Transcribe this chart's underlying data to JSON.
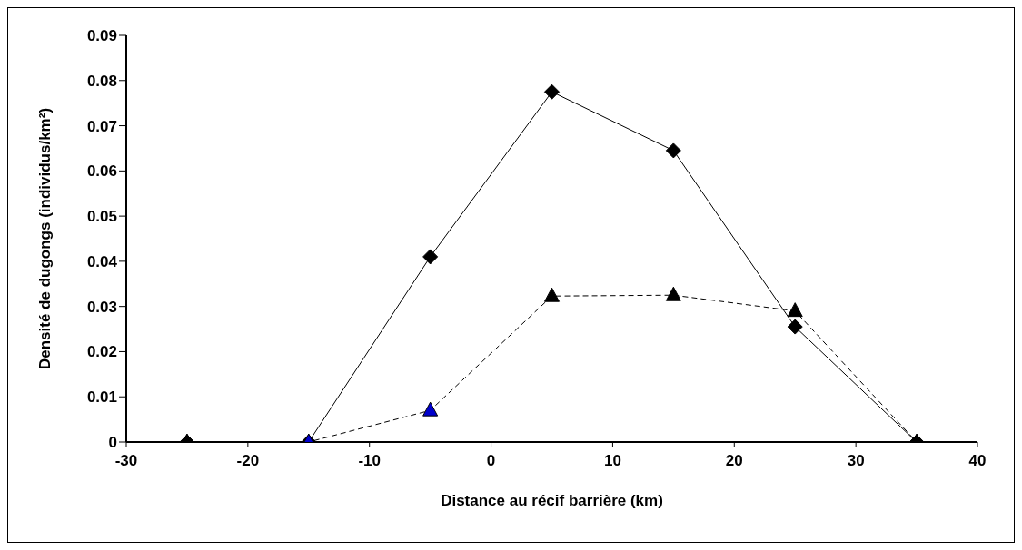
{
  "chart_data": {
    "type": "line",
    "xlabel": "Distance au récif barrière (km)",
    "ylabel": "Densité de dugongs (individus/km²)",
    "x": [
      -25,
      -15,
      -5,
      5,
      15,
      25,
      35
    ],
    "series": [
      {
        "color": "#000000",
        "values": [
          0,
          0,
          0.041,
          0.0775,
          0.0645,
          0.0255,
          0
        ],
        "marker": "diamond",
        "line_style": "solid"
      },
      {
        "color": "#000000",
        "colors": [
          "#000000",
          "#0000cc",
          "#0000cc",
          "#000000",
          "#000000",
          "#000000",
          "#000000"
        ],
        "values": [
          0,
          0,
          0.007,
          0.0323,
          0.0325,
          0.029,
          0
        ],
        "marker": "triangle",
        "line_style": "dashed"
      }
    ],
    "xlim": [
      -30,
      40
    ],
    "xticks": [
      -30,
      -20,
      -10,
      0,
      10,
      20,
      30,
      40
    ],
    "ylim": [
      0,
      0.09
    ],
    "yticks": [
      0,
      0.01,
      0.02,
      0.03,
      0.04,
      0.05,
      0.06,
      0.07,
      0.08,
      0.09
    ],
    "grid": false,
    "legend": false
  }
}
